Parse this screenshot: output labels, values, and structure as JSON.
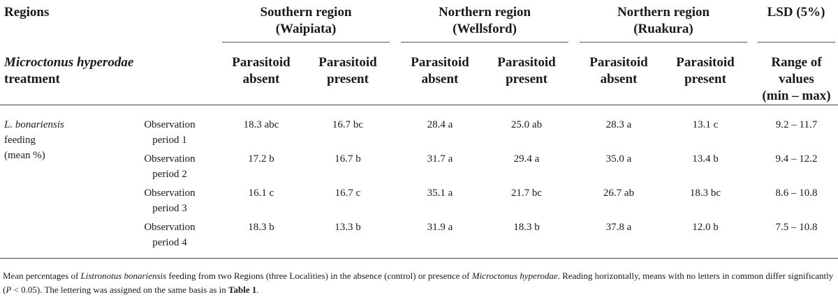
{
  "header": {
    "regions_label": "Regions",
    "treatment_label_italic": "Microctonus hyperodae",
    "treatment_label_rest": "treatment",
    "groups": [
      {
        "line1": "Southern region",
        "line2": "(Waipiata)"
      },
      {
        "line1": "Northern region",
        "line2": "(Wellsford)"
      },
      {
        "line1": "Northern region",
        "line2": "(Ruakura)"
      }
    ],
    "lsd": "LSD (5%)",
    "sub_cols": [
      {
        "line1": "Parasitoid",
        "line2": "absent"
      },
      {
        "line1": "Parasitoid",
        "line2": "present"
      },
      {
        "line1": "Parasitoid",
        "line2": "absent"
      },
      {
        "line1": "Parasitoid",
        "line2": "present"
      },
      {
        "line1": "Parasitoid",
        "line2": "absent"
      },
      {
        "line1": "Parasitoid",
        "line2": "present"
      }
    ],
    "range": {
      "line1": "Range of",
      "line2": "values",
      "line3": "(min – max)"
    }
  },
  "row_label": {
    "italic": "L. bonariensis",
    "line2": "feeding",
    "line3": "(mean %)"
  },
  "rows": [
    {
      "period_l1": "Observation",
      "period_l2": "period 1",
      "values": [
        "18.3 abc",
        "16.7 bc",
        "28.4 a",
        "25.0 ab",
        "28.3 a",
        "13.1 c"
      ],
      "range": "9.2 – 11.7"
    },
    {
      "period_l1": "Observation",
      "period_l2": "period 2",
      "values": [
        "17.2 b",
        "16.7 b",
        "31.7 a",
        "29.4 a",
        "35.0 a",
        "13.4 b"
      ],
      "range": "9.4 – 12.2"
    },
    {
      "period_l1": "Observation",
      "period_l2": "period 3",
      "values": [
        "16.1 c",
        "16.7 c",
        "35.1 a",
        "21.7 bc",
        "26.7 ab",
        "18.3 bc"
      ],
      "range": "8.6 – 10.8"
    },
    {
      "period_l1": "Observation",
      "period_l2": "period 4",
      "values": [
        "18.3 b",
        "13.3 b",
        "31.9 a",
        "18.3 b",
        "37.8 a",
        "12.0 b"
      ],
      "range": "7.5 – 10.8"
    }
  ],
  "caption": {
    "t1": "Mean percentages of ",
    "i1": "Listronotus bonariensis",
    "t2": " feeding from two Regions (three Localities) in the absence (control) or presence of ",
    "i2": "Microctonus hyperodae",
    "t3": ". Reading horizontally, means with no letters in common differ significantly (",
    "i3": "P",
    "t4": " < 0.05). The lettering was assigned on the same basis as in ",
    "b1": "Table 1",
    "t5": "."
  }
}
